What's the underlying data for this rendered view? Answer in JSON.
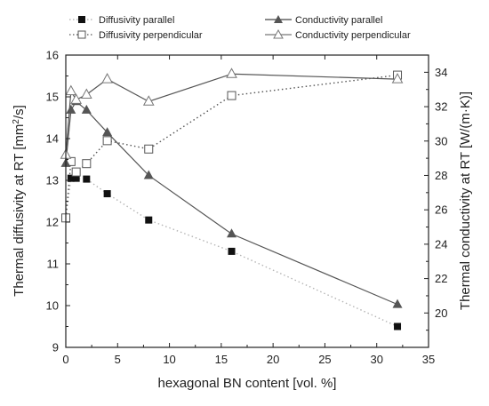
{
  "chart_data": {
    "type": "scatter",
    "xlabel": "hexagonal BN content [vol. %]",
    "ylabel_left": {
      "main": "Thermal diffusivity at RT [mm",
      "sup": "2",
      "tail": "/s]"
    },
    "ylabel_right": "Thermal conductivity at RT [W/(m·K)]",
    "xlim": [
      0,
      35
    ],
    "ylim_left": [
      9,
      16
    ],
    "ylim_right": [
      18,
      35
    ],
    "x_ticks": [
      "0",
      "5",
      "10",
      "15",
      "20",
      "25",
      "30",
      "35"
    ],
    "y_ticks_left": [
      "9",
      "10",
      "11",
      "12",
      "13",
      "14",
      "15",
      "16"
    ],
    "y_ticks_right": [
      "20",
      "22",
      "24",
      "26",
      "28",
      "30",
      "32",
      "34"
    ],
    "legend": {
      "diffusivity_parallel": "Diffusivity parallel",
      "diffusivity_perpendicular": "Diffusivity perpendicular",
      "conductivity_parallel": "Conductivity parallel",
      "conductivity_perpendicular": "Conductivity perpendicular"
    },
    "series": [
      {
        "name": "Diffusivity parallel",
        "axis": "left",
        "marker": "filled-square",
        "line": "dotted-light",
        "x": [
          0,
          0.5,
          1,
          2,
          4,
          8,
          16,
          32
        ],
        "y": [
          12.1,
          13.05,
          13.05,
          13.03,
          12.68,
          12.05,
          11.3,
          9.5
        ]
      },
      {
        "name": "Diffusivity perpendicular",
        "axis": "left",
        "marker": "open-square",
        "line": "dotted-dark",
        "x": [
          0,
          0.5,
          1,
          2,
          4,
          8,
          16,
          32
        ],
        "y": [
          12.1,
          13.45,
          13.2,
          13.4,
          13.95,
          13.75,
          15.03,
          15.52
        ]
      },
      {
        "name": "Conductivity parallel",
        "axis": "right",
        "marker": "filled-triangle",
        "line": "solid",
        "x": [
          0,
          0.5,
          1,
          2,
          4,
          8,
          16,
          32
        ],
        "y": [
          28.7,
          31.8,
          32.3,
          31.8,
          30.5,
          28.0,
          24.6,
          20.5
        ]
      },
      {
        "name": "Conductivity perpendicular",
        "axis": "right",
        "marker": "open-triangle",
        "line": "solid",
        "x": [
          0,
          0.5,
          1,
          2,
          4,
          8,
          16,
          32
        ],
        "y": [
          29.2,
          32.9,
          32.4,
          32.7,
          33.6,
          32.3,
          33.9,
          33.6
        ]
      }
    ]
  }
}
